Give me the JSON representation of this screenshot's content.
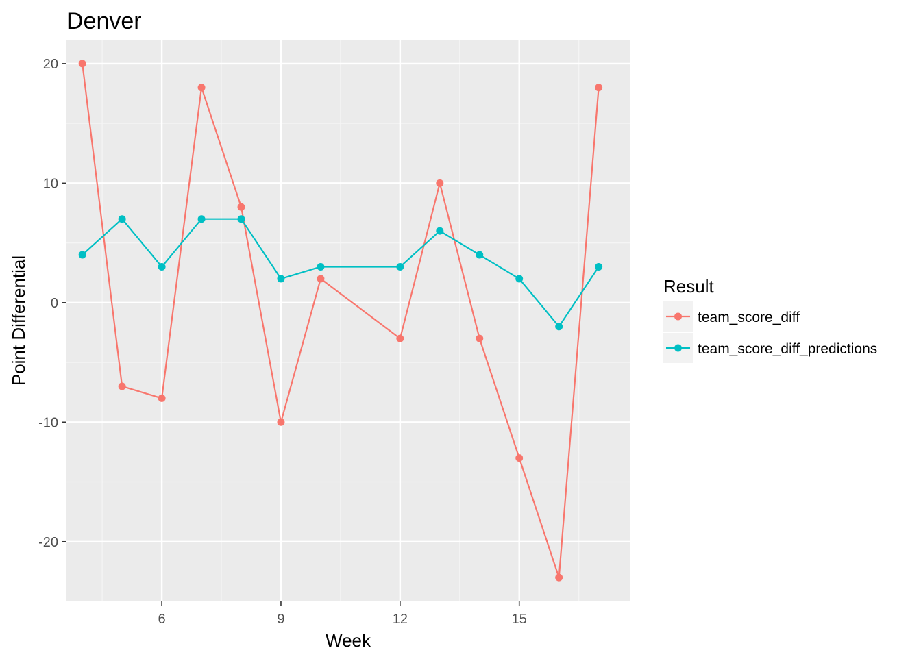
{
  "chart_data": {
    "type": "line",
    "title": "Denver",
    "xlabel": "Week",
    "ylabel": "Point Differential",
    "xlim": [
      3.6,
      17.8
    ],
    "ylim": [
      -25.0,
      22.0
    ],
    "x_ticks": [
      6,
      9,
      12,
      15
    ],
    "x_minor_ticks": [
      4.5,
      7.5,
      10.5,
      13.5,
      16.5
    ],
    "y_ticks": [
      -20,
      -10,
      0,
      10,
      20
    ],
    "y_minor_ticks": [
      -15,
      -5,
      5,
      15
    ],
    "grid": true,
    "legend_title": "Result",
    "legend_position": "right",
    "series": [
      {
        "name": "team_score_diff",
        "color": "#F8766D",
        "x": [
          4,
          5,
          6,
          7,
          8,
          9,
          10,
          12,
          13,
          14,
          15,
          16,
          17
        ],
        "y": [
          20,
          -7,
          -8,
          18,
          8,
          -10,
          2,
          -3,
          10,
          -3,
          -13,
          -23,
          18
        ]
      },
      {
        "name": "team_score_diff_predictions",
        "color": "#00BFC4",
        "x": [
          4,
          5,
          6,
          7,
          8,
          9,
          10,
          12,
          13,
          14,
          15,
          16,
          17
        ],
        "y": [
          4,
          7,
          3,
          7,
          7,
          2,
          3,
          3,
          6,
          4,
          2,
          -2,
          3
        ]
      }
    ]
  }
}
